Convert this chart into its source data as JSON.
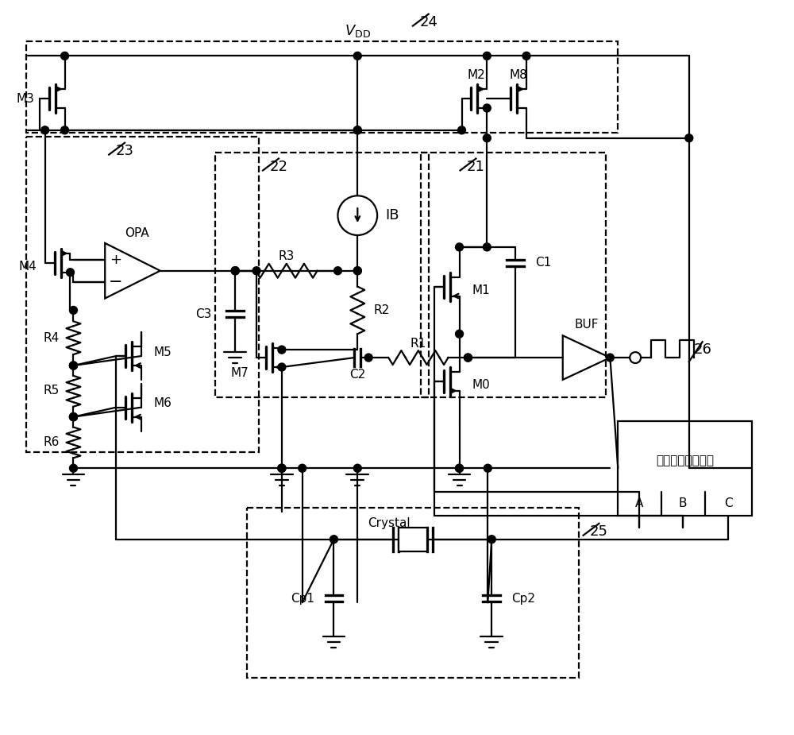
{
  "figsize": [
    10.0,
    9.25
  ],
  "dpi": 100,
  "bg": "#ffffff",
  "fg": "#000000",
  "lw": 1.6,
  "lw_thick": 2.4,
  "labels": {
    "vdd": "$V_{\\mathrm{DD}}$",
    "ib": "IB",
    "opa": "OPA",
    "buf": "BUF",
    "m0": "M0",
    "m1": "M1",
    "m2": "M2",
    "m3": "M3",
    "m4": "M4",
    "m5": "M5",
    "m6": "M6",
    "m7": "M7",
    "m8": "M8",
    "r1": "R1",
    "r2": "R2",
    "r3": "R3",
    "r4": "R4",
    "r5": "R5",
    "r6": "R6",
    "c1": "C1",
    "c2": "C2",
    "c3": "C3",
    "cp1": "Cp1",
    "cp2": "Cp2",
    "crystal": "Crystal",
    "dlc": "数字逻辑控制电路",
    "n21": "21",
    "n22": "22",
    "n23": "23",
    "n24": "24",
    "n25": "25",
    "n26": "26",
    "A": "A",
    "B": "B",
    "C": "C",
    "plus": "+",
    "minus": "−"
  }
}
